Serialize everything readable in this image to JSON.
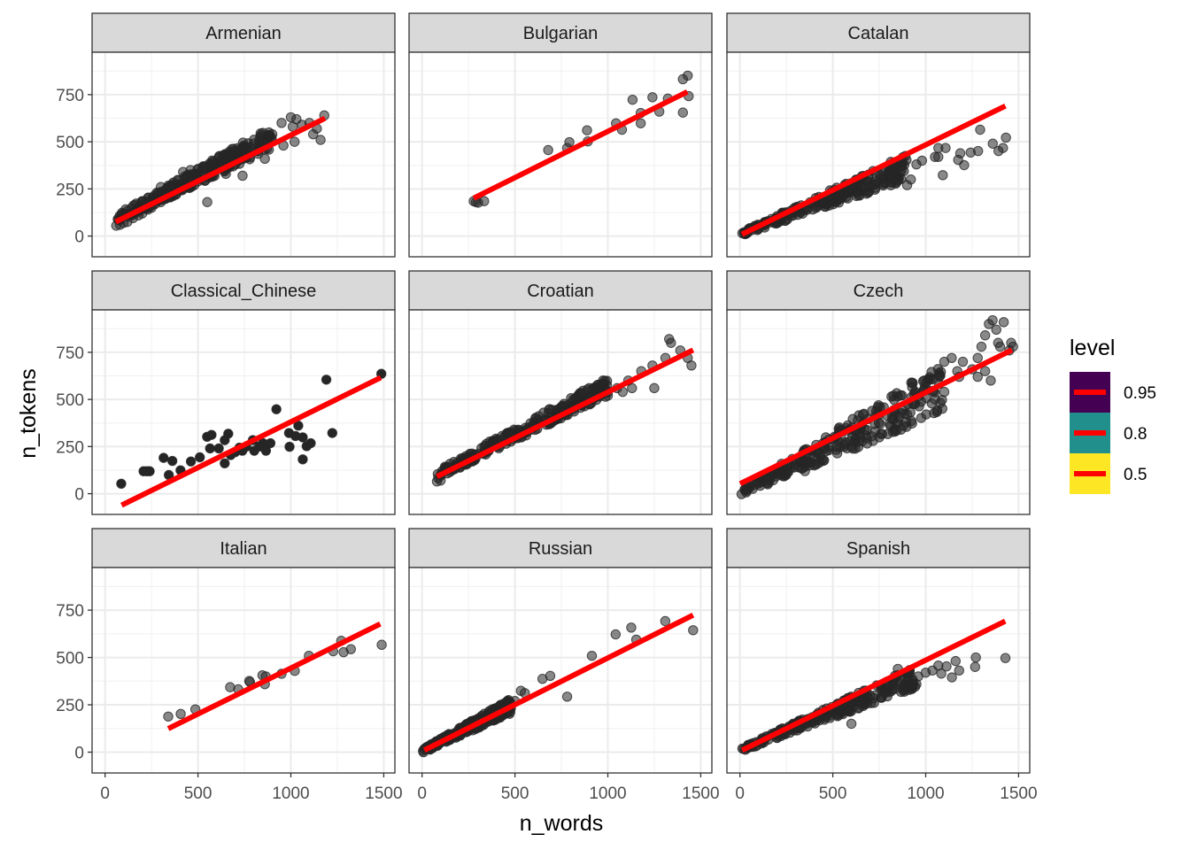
{
  "chart_data": {
    "type": "scatter",
    "facet_by": "language",
    "xlabel": "n_words",
    "ylabel": "n_tokens",
    "xlim": [
      -70,
      1560
    ],
    "ylim": [
      -110,
      975
    ],
    "x_ticks": [
      0,
      500,
      1000,
      1500
    ],
    "x_tick_labels": [
      "0",
      "500",
      "1000",
      "1500"
    ],
    "y_ticks": [
      0,
      250,
      500,
      750
    ],
    "y_tick_labels": [
      "0",
      "250",
      "500",
      "750"
    ],
    "x_minor": [
      250,
      750,
      1250
    ],
    "y_minor": [
      125,
      375,
      625,
      875
    ],
    "grid": true,
    "point_color": "#262626",
    "line_color": "#FF0000",
    "legend": {
      "title": "level",
      "placement": "right",
      "entries": [
        {
          "label": "0.95",
          "fill": "#440154"
        },
        {
          "label": "0.8",
          "fill": "#21908C"
        },
        {
          "label": "0.5",
          "fill": "#FDE725"
        }
      ]
    },
    "panels": [
      {
        "name": "Armenian",
        "line": [
          [
            57,
            75
          ],
          [
            1184,
            625
          ]
        ],
        "band": {
          "x0": 60,
          "x1": 900,
          "y0_low": 40,
          "y0_high": 80,
          "slope_low": 0.47,
          "slope_high": 0.56
        },
        "points": [
          [
            60,
            55
          ],
          [
            80,
            60
          ],
          [
            100,
            70
          ],
          [
            120,
            75
          ],
          [
            150,
            95
          ],
          [
            180,
            110
          ],
          [
            200,
            120
          ],
          [
            230,
            140
          ],
          [
            250,
            150
          ],
          [
            270,
            170
          ],
          [
            300,
            180
          ],
          [
            330,
            200
          ],
          [
            350,
            210
          ],
          [
            380,
            225
          ],
          [
            400,
            240
          ],
          [
            420,
            250
          ],
          [
            450,
            260
          ],
          [
            480,
            270
          ],
          [
            500,
            290
          ],
          [
            520,
            300
          ],
          [
            540,
            320
          ],
          [
            560,
            330
          ],
          [
            580,
            350
          ],
          [
            600,
            360
          ],
          [
            620,
            380
          ],
          [
            640,
            390
          ],
          [
            660,
            395
          ],
          [
            690,
            400
          ],
          [
            720,
            420
          ],
          [
            760,
            440
          ],
          [
            780,
            470
          ],
          [
            800,
            490
          ],
          [
            850,
            500
          ],
          [
            880,
            530
          ],
          [
            900,
            540
          ],
          [
            950,
            600
          ],
          [
            1000,
            630
          ],
          [
            1010,
            580
          ],
          [
            1030,
            620
          ],
          [
            1060,
            590
          ],
          [
            1100,
            600
          ],
          [
            1120,
            540
          ],
          [
            1140,
            570
          ],
          [
            1160,
            510
          ],
          [
            1180,
            640
          ],
          [
            550,
            180
          ],
          [
            740,
            320
          ],
          [
            860,
            410
          ],
          [
            960,
            480
          ],
          [
            1020,
            500
          ],
          [
            300,
            260
          ],
          [
            420,
            340
          ],
          [
            460,
            350
          ],
          [
            650,
            330
          ],
          [
            700,
            450
          ]
        ]
      },
      {
        "name": "Bulgarian",
        "line": [
          [
            278,
            201
          ],
          [
            1428,
            765
          ]
        ],
        "points": [
          [
            278,
            185
          ],
          [
            302,
            177
          ],
          [
            334,
            185
          ],
          [
            290,
            180
          ],
          [
            679,
            456
          ],
          [
            781,
            467
          ],
          [
            793,
            498
          ],
          [
            888,
            561
          ],
          [
            892,
            502
          ],
          [
            1044,
            598
          ],
          [
            1076,
            564
          ],
          [
            1133,
            723
          ],
          [
            1177,
            598
          ],
          [
            1177,
            653
          ],
          [
            1240,
            736
          ],
          [
            1277,
            660
          ],
          [
            1323,
            729
          ],
          [
            1404,
            832
          ],
          [
            1430,
            851
          ],
          [
            1435,
            742
          ],
          [
            1404,
            655
          ]
        ]
      },
      {
        "name": "Catalan",
        "line": [
          [
            11,
            9
          ],
          [
            1429,
            690
          ]
        ],
        "band": {
          "x0": 10,
          "x1": 900,
          "y0_low": 0,
          "y0_high": 20,
          "slope_low": 0.33,
          "slope_high": 0.46
        },
        "points": [
          [
            1293,
            564
          ],
          [
            1432,
            522
          ],
          [
            1361,
            490
          ],
          [
            1392,
            451
          ],
          [
            1416,
            467
          ],
          [
            1282,
            451
          ],
          [
            1242,
            443
          ],
          [
            1186,
            439
          ],
          [
            1175,
            404
          ],
          [
            1207,
            376
          ],
          [
            1107,
            467
          ],
          [
            1068,
            467
          ],
          [
            1068,
            420
          ],
          [
            1092,
            323
          ],
          [
            1050,
            420
          ],
          [
            980,
            400
          ],
          [
            950,
            380
          ],
          [
            920,
            300
          ],
          [
            900,
            270
          ],
          [
            870,
            350
          ],
          [
            830,
            300
          ],
          [
            800,
            330
          ]
        ]
      },
      {
        "name": "Classical_Chinese",
        "line": [
          [
            89,
            -61
          ],
          [
            1484,
            616
          ]
        ],
        "points": [
          [
            87,
            53
          ],
          [
            207,
            119
          ],
          [
            240,
            119
          ],
          [
            225,
            119
          ],
          [
            315,
            190
          ],
          [
            362,
            174
          ],
          [
            343,
            99
          ],
          [
            406,
            124
          ],
          [
            462,
            171
          ],
          [
            510,
            193
          ],
          [
            549,
            302
          ],
          [
            573,
            312
          ],
          [
            565,
            240
          ],
          [
            612,
            240
          ],
          [
            644,
            284
          ],
          [
            663,
            318
          ],
          [
            644,
            161
          ],
          [
            676,
            205
          ],
          [
            723,
            244
          ],
          [
            739,
            228
          ],
          [
            795,
            284
          ],
          [
            803,
            228
          ],
          [
            850,
            268
          ],
          [
            866,
            228
          ],
          [
            890,
            268
          ],
          [
            922,
            448
          ],
          [
            990,
            322
          ],
          [
            993,
            249
          ],
          [
            1025,
            306
          ],
          [
            1040,
            361
          ],
          [
            1064,
            299
          ],
          [
            1085,
            252
          ],
          [
            1107,
            268
          ],
          [
            1064,
            182
          ],
          [
            1191,
            605
          ],
          [
            1223,
            322
          ],
          [
            1487,
            636
          ],
          [
            700,
            220
          ],
          [
            760,
            250
          ],
          [
            830,
            250
          ]
        ]
      },
      {
        "name": "Croatian",
        "line": [
          [
            80,
            91
          ],
          [
            1459,
            762
          ]
        ],
        "band": {
          "x0": 80,
          "x1": 1000,
          "y0_low": 40,
          "y0_high": 80,
          "slope_low": 0.48,
          "slope_high": 0.54
        },
        "points": [
          [
            80,
            65
          ],
          [
            100,
            70
          ],
          [
            1050,
            560
          ],
          [
            1080,
            540
          ],
          [
            1110,
            600
          ],
          [
            1130,
            560
          ],
          [
            1180,
            650
          ],
          [
            1240,
            680
          ],
          [
            1330,
            820
          ],
          [
            1340,
            800
          ],
          [
            1310,
            720
          ],
          [
            1390,
            760
          ],
          [
            1430,
            720
          ],
          [
            1450,
            680
          ],
          [
            1250,
            560
          ],
          [
            1000,
            520
          ],
          [
            950,
            540
          ],
          [
            900,
            560
          ]
        ]
      },
      {
        "name": "Czech",
        "line": [
          [
            1,
            53
          ],
          [
            1464,
            762
          ]
        ],
        "band": {
          "x0": 5,
          "x1": 1100,
          "y0_low": -10,
          "y0_high": 20,
          "slope_low": 0.4,
          "slope_high": 0.62
        },
        "points": [
          [
            1100,
            700
          ],
          [
            1140,
            720
          ],
          [
            1170,
            650
          ],
          [
            1200,
            700
          ],
          [
            1250,
            660
          ],
          [
            1280,
            720
          ],
          [
            1300,
            780
          ],
          [
            1320,
            840
          ],
          [
            1340,
            900
          ],
          [
            1360,
            920
          ],
          [
            1380,
            870
          ],
          [
            1390,
            800
          ],
          [
            1420,
            910
          ],
          [
            1400,
            780
          ],
          [
            1450,
            760
          ],
          [
            1460,
            800
          ],
          [
            1470,
            780
          ],
          [
            1320,
            650
          ],
          [
            1280,
            620
          ],
          [
            1350,
            600
          ],
          [
            1180,
            620
          ],
          [
            1100,
            540
          ],
          [
            1050,
            500
          ],
          [
            900,
            420
          ],
          [
            850,
            380
          ],
          [
            880,
            360
          ],
          [
            650,
            300
          ],
          [
            600,
            250
          ],
          [
            400,
            150
          ],
          [
            350,
            120
          ]
        ]
      },
      {
        "name": "Italian",
        "line": [
          [
            340,
            124
          ],
          [
            1481,
            677
          ]
        ],
        "points": [
          [
            340,
            188
          ],
          [
            407,
            202
          ],
          [
            486,
            226
          ],
          [
            673,
            343
          ],
          [
            717,
            332
          ],
          [
            776,
            376
          ],
          [
            847,
            406
          ],
          [
            860,
            359
          ],
          [
            950,
            414
          ],
          [
            1021,
            429
          ],
          [
            1097,
            509
          ],
          [
            1228,
            533
          ],
          [
            1271,
            588
          ],
          [
            1284,
            528
          ],
          [
            1323,
            544
          ],
          [
            1489,
            567
          ],
          [
            780,
            370
          ],
          [
            865,
            400
          ]
        ]
      },
      {
        "name": "Russian",
        "line": [
          [
            12,
            10
          ],
          [
            1459,
            724
          ]
        ],
        "band": {
          "x0": 5,
          "x1": 480,
          "y0_low": -5,
          "y0_high": 15,
          "slope_low": 0.44,
          "slope_high": 0.56
        },
        "points": [
          [
            532,
            324
          ],
          [
            553,
            312
          ],
          [
            648,
            387
          ],
          [
            690,
            403
          ],
          [
            781,
            293
          ],
          [
            914,
            509
          ],
          [
            1042,
            622
          ],
          [
            1126,
            658
          ],
          [
            1153,
            594
          ],
          [
            1309,
            692
          ],
          [
            1459,
            644
          ],
          [
            470,
            260
          ],
          [
            500,
            270
          ],
          [
            450,
            250
          ]
        ]
      },
      {
        "name": "Spanish",
        "line": [
          [
            12,
            10
          ],
          [
            1428,
            692
          ]
        ],
        "band": {
          "x0": 10,
          "x1": 950,
          "y0_low": 0,
          "y0_high": 20,
          "slope_low": 0.36,
          "slope_high": 0.46
        },
        "points": [
          [
            1429,
            497
          ],
          [
            1270,
            500
          ],
          [
            1266,
            450
          ],
          [
            1161,
            481
          ],
          [
            1180,
            431
          ],
          [
            1141,
            395
          ],
          [
            1112,
            453
          ],
          [
            1068,
            457
          ],
          [
            1084,
            415
          ],
          [
            1036,
            431
          ],
          [
            600,
            150
          ],
          [
            1000,
            420
          ],
          [
            960,
            400
          ],
          [
            900,
            420
          ],
          [
            850,
            440
          ],
          [
            520,
            200
          ],
          [
            700,
            300
          ],
          [
            760,
            290
          ]
        ]
      }
    ]
  }
}
